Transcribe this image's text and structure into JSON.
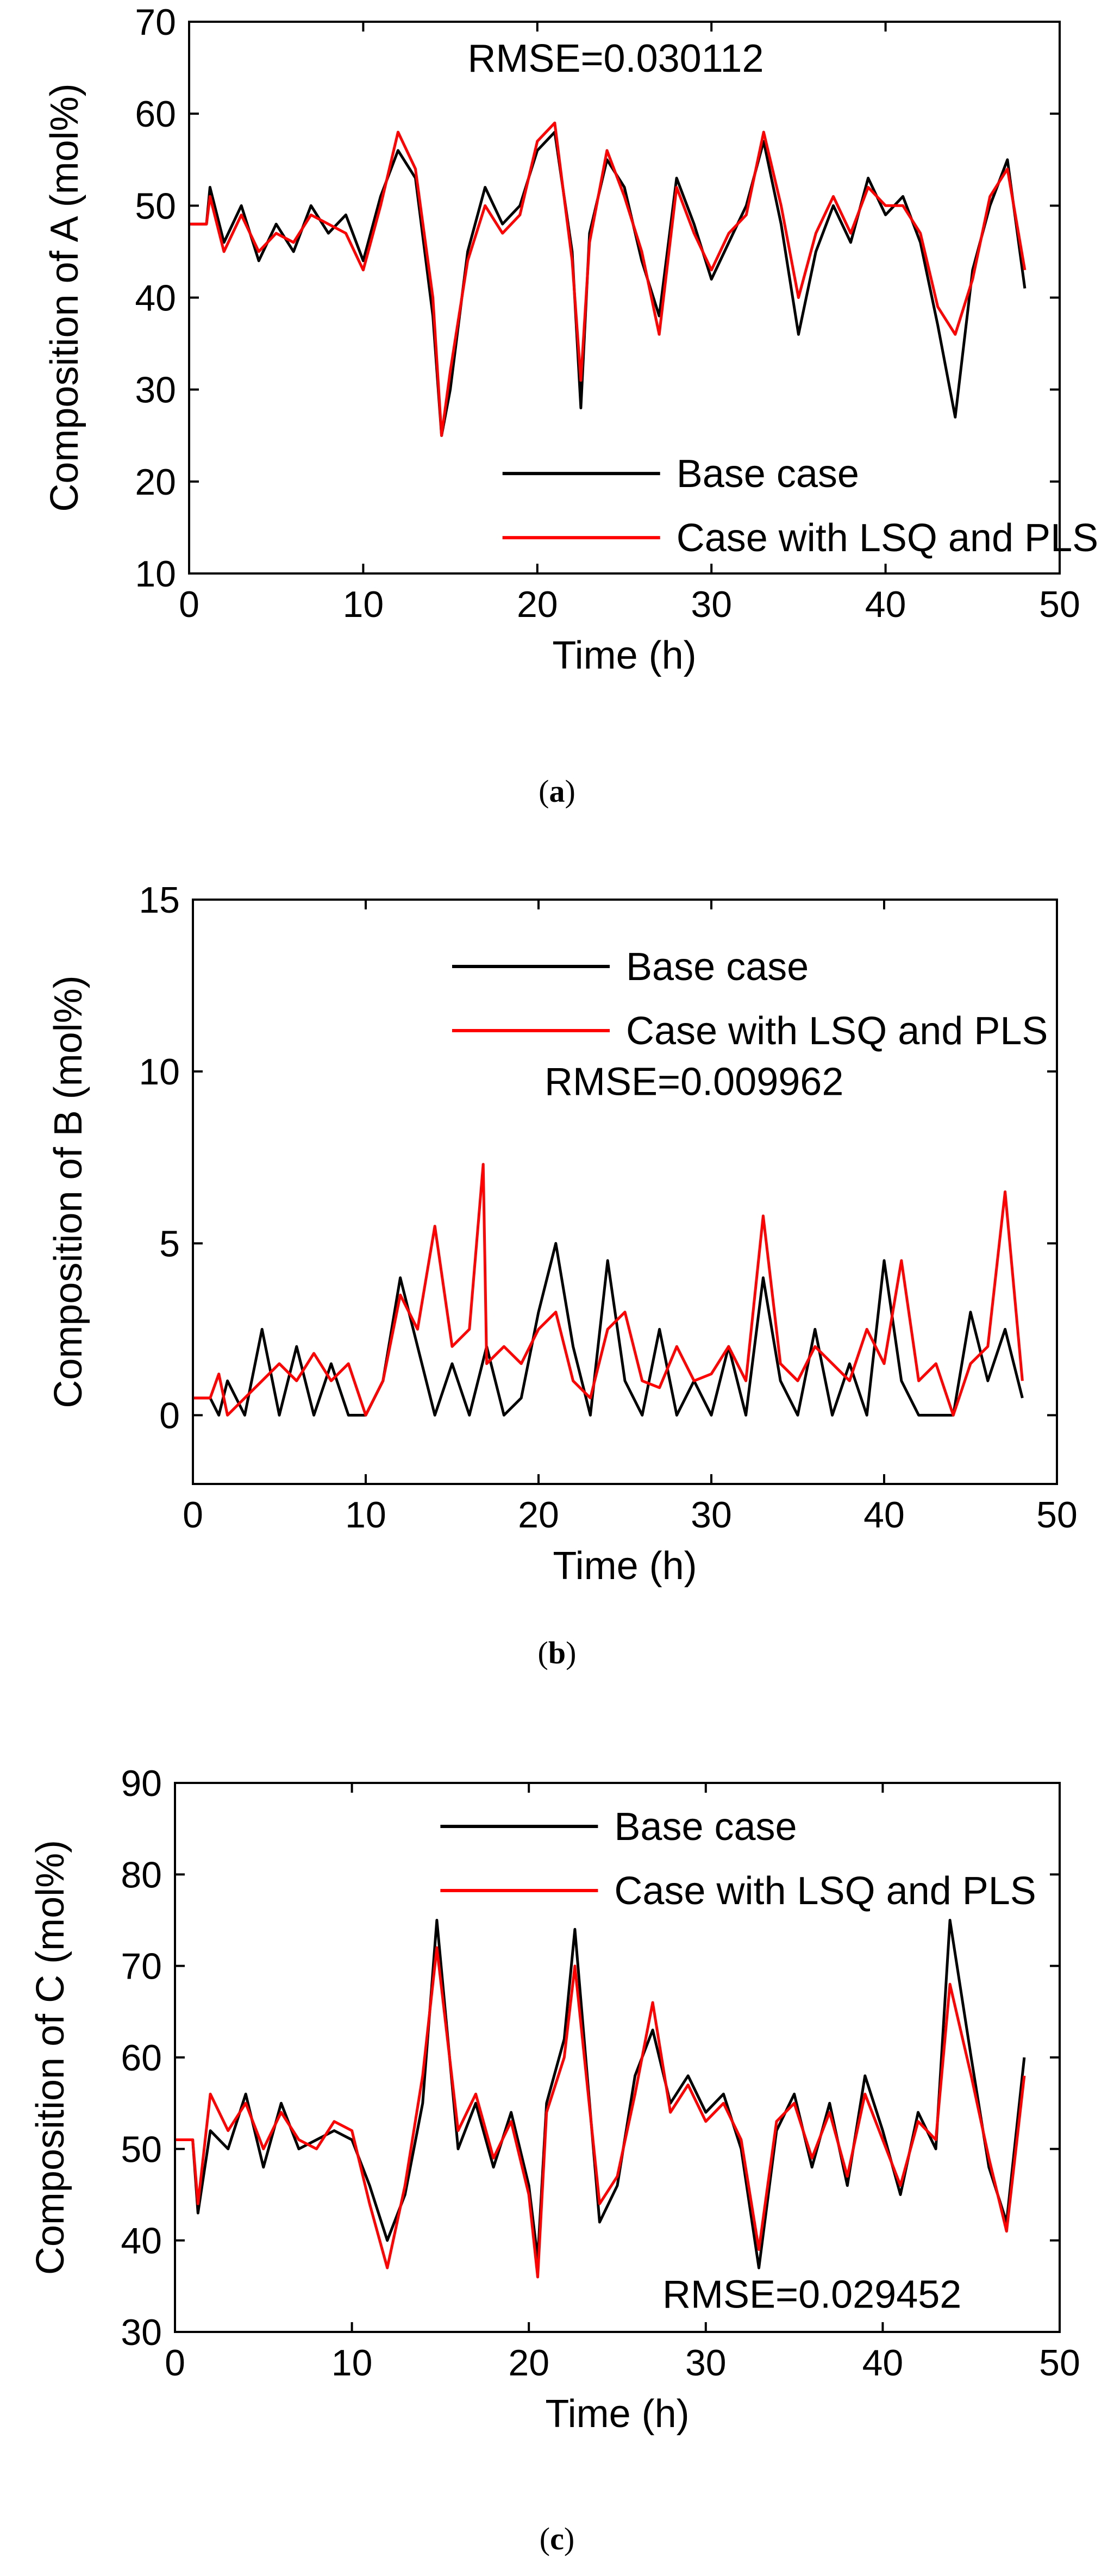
{
  "colors": {
    "base": "#000000",
    "pls": "#ff0000",
    "axis": "#000000",
    "background": "#ffffff"
  },
  "chart_data": [
    {
      "type": "line",
      "caption_letter": "a",
      "ylabel": "Composition of A (mol%)",
      "xlabel": "Time (h)",
      "xlim": [
        0,
        50
      ],
      "ylim": [
        10,
        70
      ],
      "xticks": [
        "0",
        "10",
        "20",
        "30",
        "40",
        "50"
      ],
      "yticks": [
        "10",
        "20",
        "30",
        "40",
        "50",
        "60",
        "70"
      ],
      "annotation": "RMSE=0.030112",
      "legend": {
        "placement": "bottom-center",
        "entries": [
          "Base case",
          "Case with LSQ and PLS"
        ]
      },
      "series": [
        {
          "name": "Base case",
          "x": [
            0,
            1,
            1.2,
            2,
            3,
            4,
            5,
            6,
            7,
            8,
            9,
            10,
            11,
            12,
            13,
            14,
            14.5,
            15,
            16,
            17,
            18,
            19,
            20,
            21,
            22,
            22.5,
            23,
            24,
            25,
            26,
            27,
            28,
            29,
            30,
            31,
            32,
            33,
            34,
            35,
            36,
            37,
            38,
            39,
            40,
            41,
            42,
            43,
            44,
            45,
            46,
            47,
            48
          ],
          "y": [
            48,
            48,
            52,
            46,
            50,
            44,
            48,
            45,
            50,
            47,
            49,
            44,
            51,
            56,
            53,
            38,
            25,
            30,
            45,
            52,
            48,
            50,
            56,
            58,
            45,
            28,
            47,
            55,
            52,
            44,
            38,
            53,
            48,
            42,
            46,
            50,
            57,
            48,
            36,
            45,
            50,
            46,
            53,
            49,
            51,
            46,
            37,
            27,
            43,
            50,
            55,
            41
          ]
        },
        {
          "name": "Case with LSQ and PLS",
          "x": [
            0,
            1,
            1.2,
            2,
            3,
            4,
            5,
            6,
            7,
            8,
            9,
            10,
            11,
            12,
            13,
            14,
            14.5,
            15,
            16,
            17,
            18,
            19,
            20,
            21,
            22,
            22.5,
            23,
            24,
            25,
            26,
            27,
            28,
            29,
            30,
            31,
            32,
            33,
            34,
            35,
            36,
            37,
            38,
            39,
            40,
            41,
            42,
            43,
            44,
            45,
            46,
            47,
            48
          ],
          "y": [
            48,
            48,
            51,
            45,
            49,
            45,
            47,
            46,
            49,
            48,
            47,
            43,
            50,
            58,
            54,
            40,
            25,
            32,
            44,
            50,
            47,
            49,
            57,
            59,
            44,
            31,
            46,
            56,
            51,
            45,
            36,
            52,
            47,
            43,
            47,
            49,
            58,
            50,
            40,
            47,
            51,
            47,
            52,
            50,
            50,
            47,
            39,
            36,
            42,
            51,
            54,
            43
          ]
        }
      ]
    },
    {
      "type": "line",
      "caption_letter": "b",
      "ylabel": "Composition of B (mol%)",
      "xlabel": "Time (h)",
      "xlim": [
        0,
        50
      ],
      "ylim": [
        -2,
        15
      ],
      "xticks": [
        "0",
        "10",
        "20",
        "30",
        "40",
        "50"
      ],
      "yticks": [
        "0",
        "5",
        "10",
        "15"
      ],
      "annotation": "RMSE=0.009962",
      "legend": {
        "placement": "top-center",
        "entries": [
          "Base case",
          "Case with LSQ and PLS"
        ]
      },
      "series": [
        {
          "name": "Base case",
          "x": [
            0,
            1,
            1.5,
            2,
            3,
            4,
            5,
            6,
            7,
            8,
            9,
            10,
            11,
            12,
            13,
            14,
            15,
            16,
            17,
            18,
            19,
            20,
            21,
            22,
            23,
            24,
            25,
            26,
            27,
            28,
            29,
            30,
            31,
            32,
            33,
            34,
            35,
            36,
            37,
            38,
            39,
            40,
            41,
            42,
            43,
            44,
            45,
            46,
            47,
            48
          ],
          "y": [
            0.5,
            0.5,
            0,
            1,
            0,
            2.5,
            0,
            2,
            0,
            1.5,
            0,
            0,
            1,
            4,
            2,
            0,
            1.5,
            0,
            2,
            0,
            0.5,
            3,
            5,
            2,
            0,
            4.5,
            1,
            0,
            2.5,
            0,
            1,
            0,
            2,
            0,
            4,
            1,
            0,
            2.5,
            0,
            1.5,
            0,
            4.5,
            1,
            0,
            0,
            0,
            3,
            1,
            2.5,
            0.5
          ]
        },
        {
          "name": "Case with LSQ and PLS",
          "x": [
            0,
            1,
            1.5,
            2,
            3,
            4,
            5,
            6,
            7,
            8,
            9,
            10,
            11,
            12,
            13,
            14,
            15,
            16,
            16.8,
            17,
            18,
            19,
            20,
            21,
            22,
            23,
            24,
            25,
            26,
            27,
            28,
            29,
            30,
            31,
            32,
            33,
            34,
            35,
            36,
            37,
            38,
            39,
            40,
            41,
            42,
            43,
            44,
            45,
            46,
            47,
            48
          ],
          "y": [
            0.5,
            0.5,
            1.2,
            0,
            0.5,
            1,
            1.5,
            1,
            1.8,
            1,
            1.5,
            0,
            1,
            3.5,
            2.5,
            5.5,
            2,
            2.5,
            7.3,
            1.5,
            2,
            1.5,
            2.5,
            3,
            1,
            0.5,
            2.5,
            3,
            1,
            0.8,
            2,
            1,
            1.2,
            2,
            1,
            5.8,
            1.5,
            1,
            2,
            1.5,
            1,
            2.5,
            1.5,
            4.5,
            1,
            1.5,
            0,
            1.5,
            2,
            6.5,
            1
          ]
        }
      ]
    },
    {
      "type": "line",
      "caption_letter": "c",
      "ylabel": "Composition of C (mol%)",
      "xlabel": "Time (h)",
      "xlim": [
        0,
        50
      ],
      "ylim": [
        30,
        90
      ],
      "xticks": [
        "0",
        "10",
        "20",
        "30",
        "40",
        "50"
      ],
      "yticks": [
        "30",
        "40",
        "50",
        "60",
        "70",
        "80",
        "90"
      ],
      "annotation": "RMSE=0.029452",
      "legend": {
        "placement": "top-right",
        "entries": [
          "Base case",
          "Case with LSQ and PLS"
        ]
      },
      "series": [
        {
          "name": "Base case",
          "x": [
            0,
            1,
            1.3,
            2,
            3,
            4,
            5,
            6,
            7,
            8,
            9,
            10,
            11,
            12,
            13,
            14,
            14.8,
            16,
            17,
            18,
            19,
            20,
            20.5,
            21,
            22,
            22.6,
            24,
            25,
            26,
            27,
            28,
            29,
            30,
            31,
            32,
            33,
            34,
            35,
            36,
            37,
            38,
            39,
            40,
            41,
            42,
            43,
            43.8,
            45,
            46,
            47,
            48
          ],
          "y": [
            51,
            51,
            43,
            52,
            50,
            56,
            48,
            55,
            50,
            51,
            52,
            51,
            46,
            40,
            45,
            55,
            75,
            50,
            55,
            48,
            54,
            46,
            38,
            55,
            62,
            74,
            42,
            46,
            58,
            63,
            55,
            58,
            54,
            56,
            50,
            37,
            52,
            56,
            48,
            55,
            46,
            58,
            52,
            45,
            54,
            50,
            75,
            60,
            48,
            42,
            60
          ]
        },
        {
          "name": "Case with LSQ and PLS",
          "x": [
            0,
            1,
            1.3,
            2,
            3,
            4,
            5,
            6,
            7,
            8,
            9,
            10,
            11,
            12,
            13,
            14,
            14.8,
            16,
            17,
            18,
            19,
            20,
            20.5,
            21,
            22,
            22.6,
            24,
            25,
            26,
            27,
            28,
            29,
            30,
            31,
            32,
            33,
            34,
            35,
            36,
            37,
            38,
            39,
            40,
            41,
            42,
            43,
            43.8,
            45,
            46,
            47,
            48
          ],
          "y": [
            51,
            51,
            44,
            56,
            52,
            55,
            50,
            54,
            51,
            50,
            53,
            52,
            44,
            37,
            46,
            58,
            72,
            52,
            56,
            49,
            53,
            45,
            36,
            54,
            60,
            70,
            44,
            47,
            56,
            66,
            54,
            57,
            53,
            55,
            51,
            39,
            53,
            55,
            49,
            54,
            47,
            56,
            51,
            46,
            53,
            51,
            68,
            58,
            49,
            41,
            58
          ]
        }
      ]
    }
  ]
}
